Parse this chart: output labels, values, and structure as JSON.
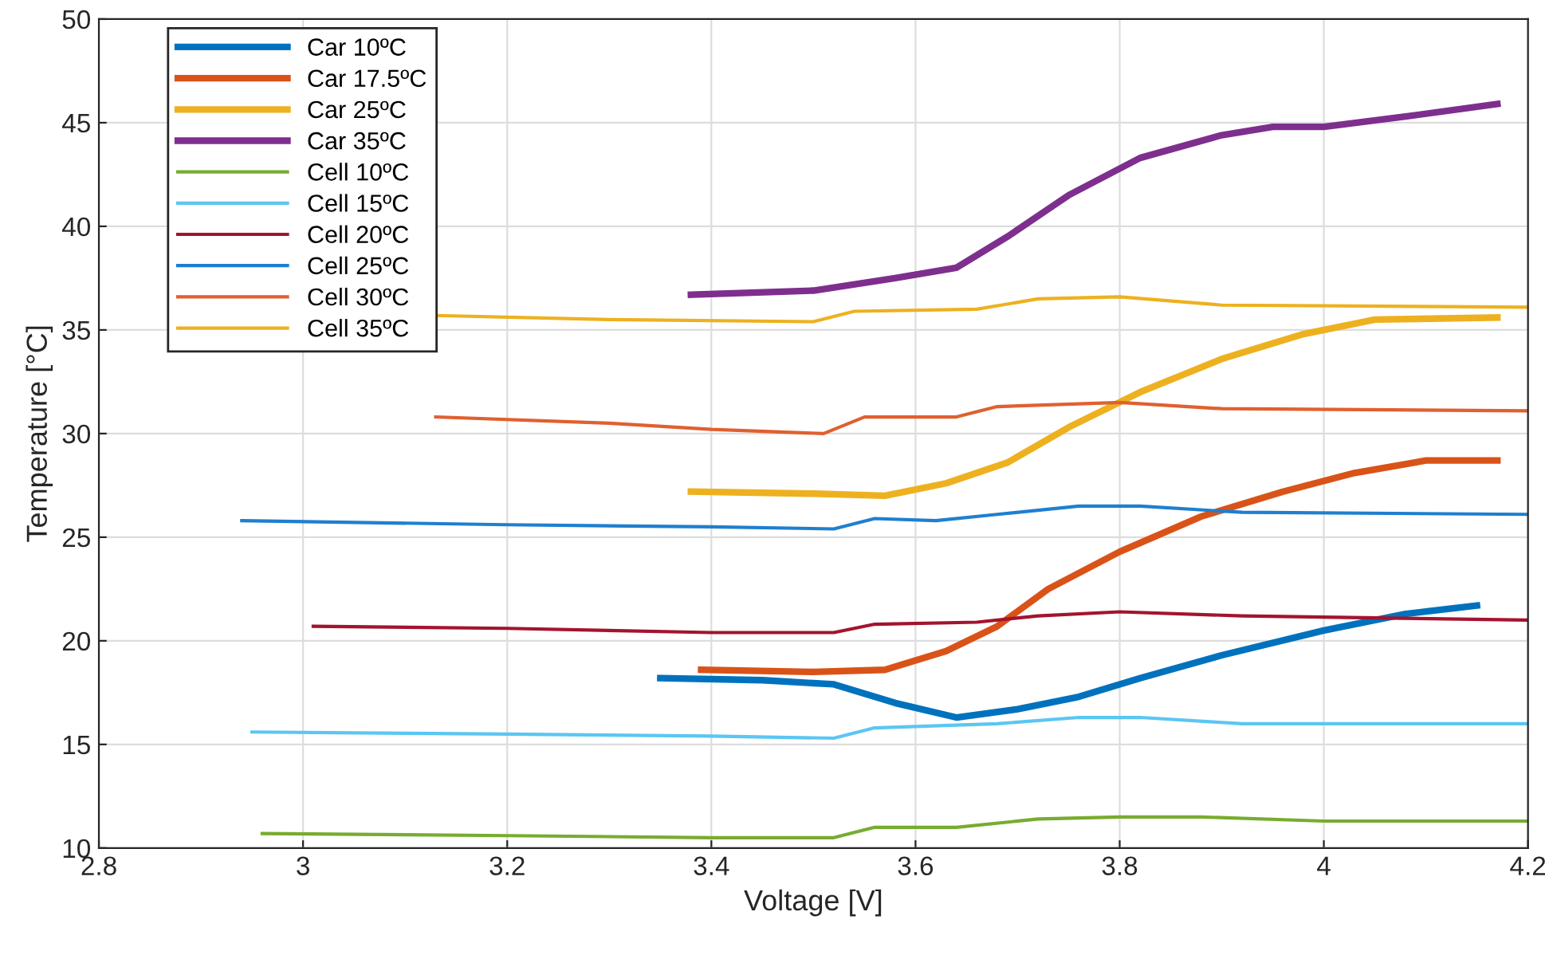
{
  "chart_data": {
    "type": "line",
    "xlabel": "Voltage [V]",
    "ylabel": "Temperature [°C]",
    "xlim": [
      2.8,
      4.2
    ],
    "xticks": [
      2.8,
      3,
      3.2,
      3.4,
      3.6,
      3.8,
      4,
      4.2
    ],
    "ylim": [
      10,
      50
    ],
    "yticks": [
      10,
      15,
      20,
      25,
      30,
      35,
      40,
      45,
      50
    ],
    "grid": true,
    "legend": "top left",
    "marker": "none",
    "line_style": "solid",
    "series": [
      {
        "name": "Car 10ºC",
        "color": "#0072bd",
        "x": [
          3.35,
          3.45,
          3.52,
          3.58,
          3.64,
          3.7,
          3.76,
          3.82,
          3.9,
          4.0,
          4.08,
          4.15
        ],
        "values": [
          18.2,
          18.1,
          17.9,
          17.0,
          16.3,
          16.7,
          17.3,
          18.2,
          19.3,
          20.5,
          21.3,
          21.7
        ]
      },
      {
        "name": "Car 17.5ºC",
        "color": "#d95319",
        "x": [
          3.39,
          3.5,
          3.57,
          3.63,
          3.68,
          3.73,
          3.8,
          3.88,
          3.96,
          4.03,
          4.1,
          4.17
        ],
        "values": [
          18.6,
          18.5,
          18.6,
          19.5,
          20.7,
          22.5,
          24.3,
          26.0,
          27.2,
          28.1,
          28.7,
          28.7
        ]
      },
      {
        "name": "Car 25ºC",
        "color": "#edb120",
        "x": [
          3.38,
          3.5,
          3.57,
          3.63,
          3.69,
          3.75,
          3.82,
          3.9,
          3.98,
          4.05,
          4.17
        ],
        "values": [
          27.2,
          27.1,
          27.0,
          27.6,
          28.6,
          30.3,
          32.0,
          33.6,
          34.8,
          35.5,
          35.6
        ]
      },
      {
        "name": "Car 35ºC",
        "color": "#7e2f8e",
        "x": [
          3.38,
          3.5,
          3.58,
          3.64,
          3.69,
          3.75,
          3.82,
          3.9,
          3.95,
          4.0,
          4.08,
          4.17
        ],
        "values": [
          36.7,
          36.9,
          37.5,
          38.0,
          39.5,
          41.5,
          43.3,
          44.4,
          44.8,
          44.8,
          45.3,
          45.9
        ]
      },
      {
        "name": "Cell 10ºC",
        "color": "#77ac30",
        "x": [
          2.96,
          3.2,
          3.4,
          3.52,
          3.56,
          3.64,
          3.72,
          3.8,
          3.88,
          4.0,
          4.2
        ],
        "values": [
          10.7,
          10.6,
          10.5,
          10.5,
          11.0,
          11.0,
          11.4,
          11.5,
          11.5,
          11.3,
          11.3
        ]
      },
      {
        "name": "Cell 15ºC",
        "color": "#5bc6f2",
        "x": [
          2.95,
          3.2,
          3.4,
          3.52,
          3.56,
          3.68,
          3.76,
          3.82,
          3.92,
          4.2
        ],
        "values": [
          15.6,
          15.5,
          15.4,
          15.3,
          15.8,
          16.0,
          16.3,
          16.3,
          16.0,
          16.0
        ]
      },
      {
        "name": "Cell 20ºC",
        "color": "#a2142f",
        "x": [
          3.01,
          3.2,
          3.4,
          3.52,
          3.56,
          3.66,
          3.72,
          3.8,
          3.92,
          4.2
        ],
        "values": [
          20.7,
          20.6,
          20.4,
          20.4,
          20.8,
          20.9,
          21.2,
          21.4,
          21.2,
          21.0
        ]
      },
      {
        "name": "Cell 25ºC",
        "color": "#1f7fcf",
        "x": [
          2.94,
          3.2,
          3.4,
          3.52,
          3.56,
          3.62,
          3.68,
          3.76,
          3.82,
          3.92,
          4.2
        ],
        "values": [
          25.8,
          25.6,
          25.5,
          25.4,
          25.9,
          25.8,
          26.1,
          26.5,
          26.5,
          26.2,
          26.1
        ]
      },
      {
        "name": "Cell 30ºC",
        "color": "#e06030",
        "x": [
          3.13,
          3.3,
          3.4,
          3.51,
          3.55,
          3.64,
          3.68,
          3.8,
          3.9,
          4.2
        ],
        "values": [
          30.8,
          30.5,
          30.2,
          30.0,
          30.8,
          30.8,
          31.3,
          31.5,
          31.2,
          31.1
        ]
      },
      {
        "name": "Cell 35ºC",
        "color": "#edb120",
        "x": [
          3.13,
          3.3,
          3.5,
          3.54,
          3.66,
          3.72,
          3.8,
          3.9,
          4.2
        ],
        "values": [
          35.7,
          35.5,
          35.4,
          35.9,
          36.0,
          36.5,
          36.6,
          36.2,
          36.1
        ]
      }
    ]
  }
}
